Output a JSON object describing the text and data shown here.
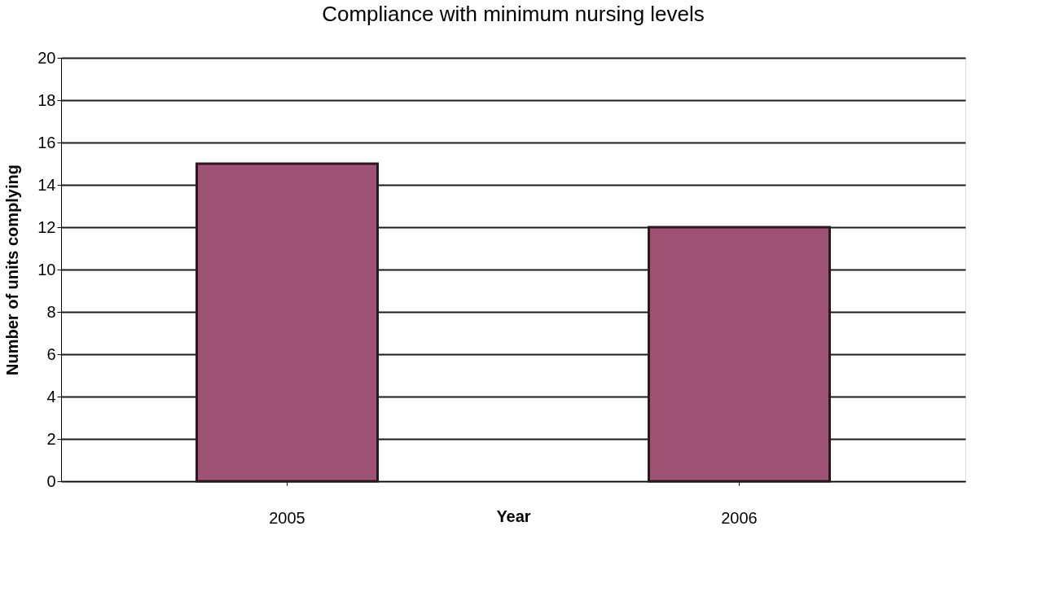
{
  "chart_data": {
    "type": "bar",
    "title": "Compliance with minimum nursing levels",
    "xlabel": "Year",
    "ylabel": "Number of units complying",
    "categories": [
      "2005",
      "2006"
    ],
    "values": [
      15,
      12
    ],
    "color": "#a05274",
    "ylim": [
      0,
      20
    ],
    "yticks": [
      0,
      2,
      4,
      6,
      8,
      10,
      12,
      14,
      16,
      18,
      20
    ],
    "grid": "y"
  }
}
